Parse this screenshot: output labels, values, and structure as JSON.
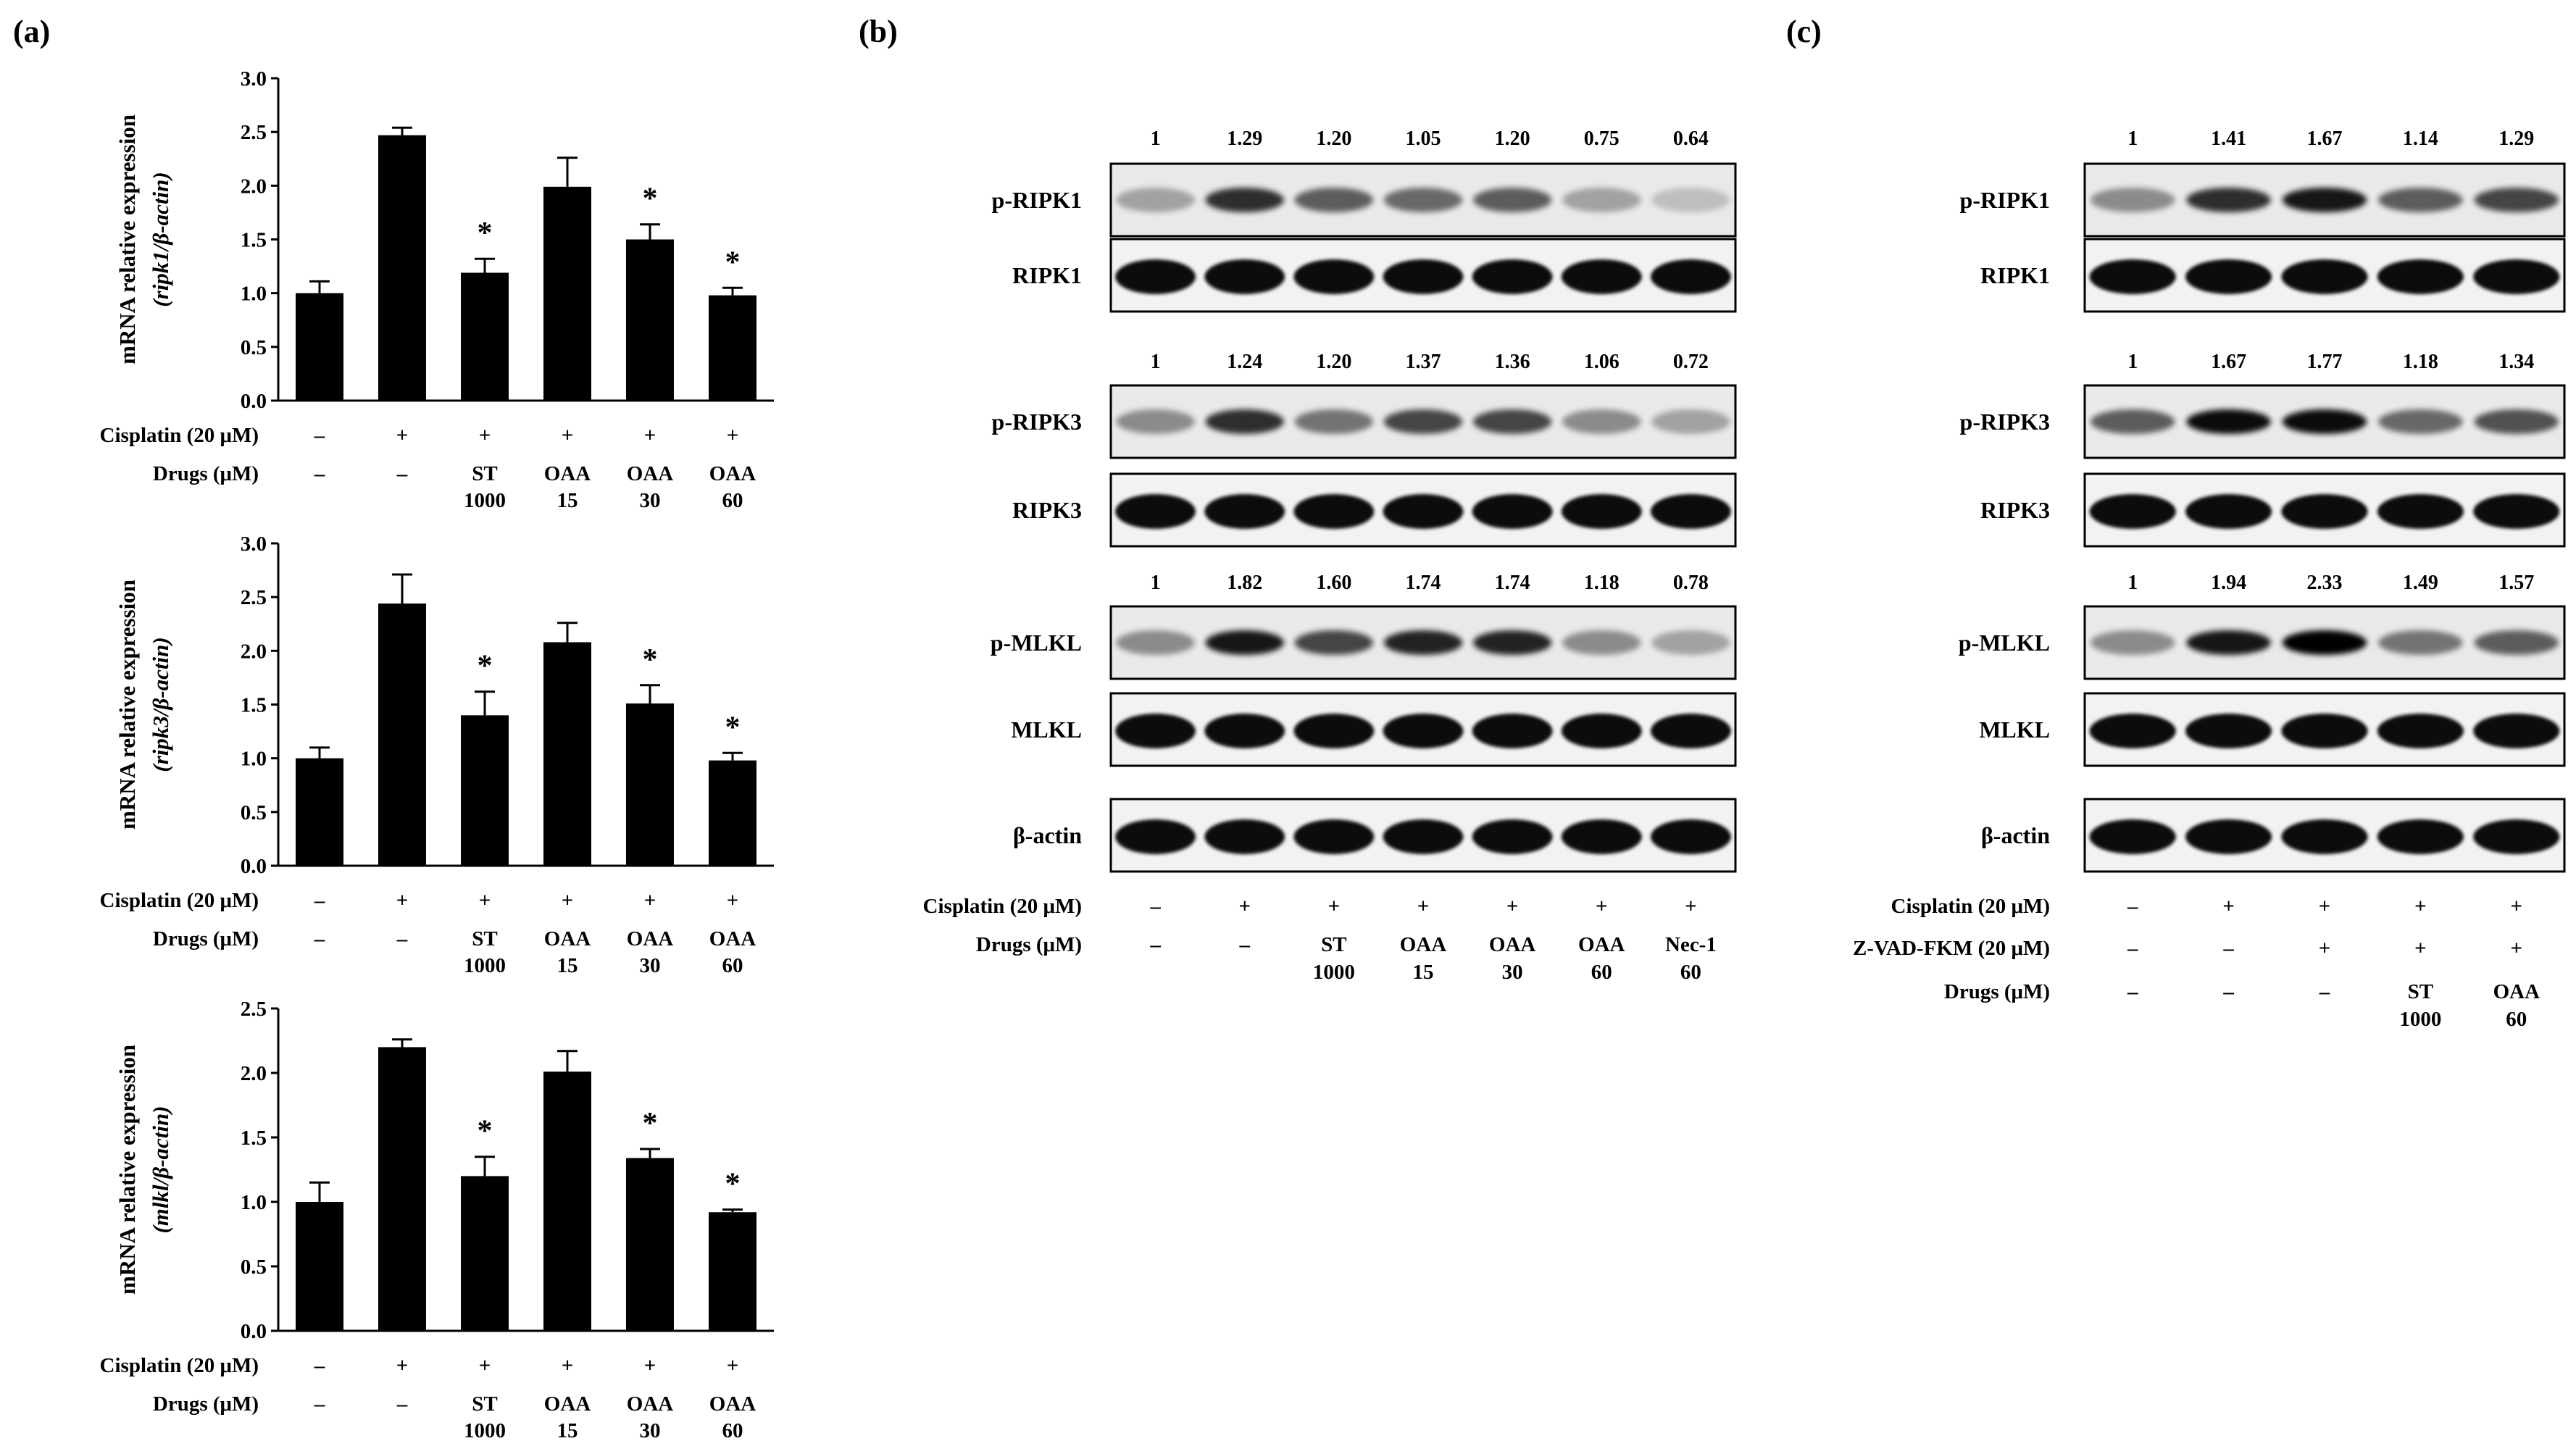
{
  "figure": {
    "panel_a_label": "(a)",
    "panel_b_label": "(b)",
    "panel_c_label": "(c)"
  },
  "chart_data": [
    {
      "type": "bar",
      "ylabel_line1": "mRNA relative expression",
      "ylabel_line2": "(ripk1/β-actin)",
      "ylim": [
        0,
        3.0
      ],
      "yticks": [
        "0.0",
        "0.5",
        "1.0",
        "1.5",
        "2.0",
        "2.5",
        "3.0"
      ],
      "values": [
        1.0,
        2.47,
        1.19,
        1.99,
        1.5,
        0.98
      ],
      "errors": [
        0.11,
        0.07,
        0.13,
        0.27,
        0.14,
        0.07
      ],
      "significant": [
        "",
        "",
        "*",
        "",
        "*",
        "*"
      ],
      "cisplatin_label": "Cisplatin (20 μM)",
      "cisplatin": [
        "–",
        "+",
        "+",
        "+",
        "+",
        "+"
      ],
      "drugs_label": "Drugs (μM)",
      "drugs": [
        [
          "–",
          ""
        ],
        [
          "–",
          ""
        ],
        [
          "ST",
          "1000"
        ],
        [
          "OAA",
          "15"
        ],
        [
          "OAA",
          "30"
        ],
        [
          "OAA",
          "60"
        ]
      ]
    },
    {
      "type": "bar",
      "ylabel_line1": "mRNA relative expression",
      "ylabel_line2": "(ripk3/β-actin)",
      "ylim": [
        0,
        3.0
      ],
      "yticks": [
        "0.0",
        "0.5",
        "1.0",
        "1.5",
        "2.0",
        "2.5",
        "3.0"
      ],
      "values": [
        1.0,
        2.44,
        1.4,
        2.08,
        1.51,
        0.98
      ],
      "errors": [
        0.1,
        0.27,
        0.22,
        0.18,
        0.17,
        0.07
      ],
      "significant": [
        "",
        "",
        "*",
        "",
        "*",
        "*"
      ],
      "cisplatin_label": "Cisplatin (20 μM)",
      "cisplatin": [
        "–",
        "+",
        "+",
        "+",
        "+",
        "+"
      ],
      "drugs_label": "Drugs (μM)",
      "drugs": [
        [
          "–",
          ""
        ],
        [
          "–",
          ""
        ],
        [
          "ST",
          "1000"
        ],
        [
          "OAA",
          "15"
        ],
        [
          "OAA",
          "30"
        ],
        [
          "OAA",
          "60"
        ]
      ]
    },
    {
      "type": "bar",
      "ylabel_line1": "mRNA relative expression",
      "ylabel_line2": "(mlkl/β-actin)",
      "ylim": [
        0,
        2.5
      ],
      "yticks": [
        "0.0",
        "0.5",
        "1.0",
        "1.5",
        "2.0",
        "2.5"
      ],
      "values": [
        1.0,
        2.2,
        1.2,
        2.01,
        1.34,
        0.92
      ],
      "errors": [
        0.15,
        0.06,
        0.15,
        0.16,
        0.07,
        0.02
      ],
      "significant": [
        "",
        "",
        "*",
        "",
        "*",
        "*"
      ],
      "cisplatin_label": "Cisplatin (20 μM)",
      "cisplatin": [
        "–",
        "+",
        "+",
        "+",
        "+",
        "+"
      ],
      "drugs_label": "Drugs (μM)",
      "drugs": [
        [
          "–",
          ""
        ],
        [
          "–",
          ""
        ],
        [
          "ST",
          "1000"
        ],
        [
          "OAA",
          "15"
        ],
        [
          "OAA",
          "30"
        ],
        [
          "OAA",
          "60"
        ]
      ]
    }
  ],
  "blots": [
    {
      "panel": "b",
      "lanes": 7,
      "groups": [
        {
          "quant": [
            "1",
            "1.29",
            "1.20",
            "1.05",
            "1.20",
            "0.75",
            "0.64"
          ],
          "rows": [
            {
              "label": "p-RIPK1",
              "kind": "phospho",
              "intensity": [
                0.3,
                0.8,
                0.6,
                0.55,
                0.6,
                0.3,
                0.18
              ]
            },
            {
              "label": "RIPK1",
              "kind": "total"
            }
          ]
        },
        {
          "quant": [
            "1",
            "1.24",
            "1.20",
            "1.37",
            "1.36",
            "1.06",
            "0.72"
          ],
          "rows": [
            {
              "label": "p-RIPK3",
              "kind": "phospho",
              "intensity": [
                0.4,
                0.8,
                0.5,
                0.7,
                0.7,
                0.4,
                0.3
              ]
            },
            {
              "label": "RIPK3",
              "kind": "total"
            }
          ]
        },
        {
          "quant": [
            "1",
            "1.82",
            "1.60",
            "1.74",
            "1.74",
            "1.18",
            "0.78"
          ],
          "rows": [
            {
              "label": "p-MLKL",
              "kind": "phospho",
              "intensity": [
                0.4,
                0.9,
                0.7,
                0.85,
                0.85,
                0.4,
                0.3
              ]
            },
            {
              "label": "MLKL",
              "kind": "total"
            }
          ]
        },
        {
          "quant": [],
          "rows": [
            {
              "label": "β-actin",
              "kind": "total"
            }
          ]
        }
      ],
      "conditions": [
        {
          "label": "Cisplatin (20 μM)",
          "cells": [
            [
              "–"
            ],
            [
              "+"
            ],
            [
              "+"
            ],
            [
              "+"
            ],
            [
              "+"
            ],
            [
              "+"
            ],
            [
              "+"
            ]
          ]
        },
        {
          "label": "Drugs (μM)",
          "cells": [
            [
              "–"
            ],
            [
              "–"
            ],
            [
              "ST",
              "1000"
            ],
            [
              "OAA",
              "15"
            ],
            [
              "OAA",
              "30"
            ],
            [
              "OAA",
              "60"
            ],
            [
              "Nec-1",
              "60"
            ]
          ]
        }
      ]
    },
    {
      "panel": "c",
      "lanes": 5,
      "groups": [
        {
          "quant": [
            "1",
            "1.41",
            "1.67",
            "1.14",
            "1.29"
          ],
          "rows": [
            {
              "label": "p-RIPK1",
              "kind": "phospho",
              "intensity": [
                0.4,
                0.8,
                0.9,
                0.6,
                0.7
              ]
            },
            {
              "label": "RIPK1",
              "kind": "total"
            }
          ]
        },
        {
          "quant": [
            "1",
            "1.67",
            "1.77",
            "1.18",
            "1.34"
          ],
          "rows": [
            {
              "label": "p-RIPK3",
              "kind": "phospho",
              "intensity": [
                0.6,
                0.95,
                0.95,
                0.55,
                0.65
              ]
            },
            {
              "label": "RIPK3",
              "kind": "total"
            }
          ]
        },
        {
          "quant": [
            "1",
            "1.94",
            "2.33",
            "1.49",
            "1.57"
          ],
          "rows": [
            {
              "label": "p-MLKL",
              "kind": "phospho",
              "intensity": [
                0.4,
                0.9,
                1.0,
                0.5,
                0.6
              ]
            },
            {
              "label": "MLKL",
              "kind": "total"
            }
          ]
        },
        {
          "quant": [],
          "rows": [
            {
              "label": "β-actin",
              "kind": "total"
            }
          ]
        }
      ],
      "conditions": [
        {
          "label": "Cisplatin (20 μM)",
          "cells": [
            [
              "–"
            ],
            [
              "+"
            ],
            [
              "+"
            ],
            [
              "+"
            ],
            [
              "+"
            ]
          ]
        },
        {
          "label": "Z-VAD-FKM (20 μM)",
          "cells": [
            [
              "–"
            ],
            [
              "–"
            ],
            [
              "+"
            ],
            [
              "+"
            ],
            [
              "+"
            ]
          ]
        },
        {
          "label": "Drugs (μM)",
          "cells": [
            [
              "–"
            ],
            [
              "–"
            ],
            [
              "–"
            ],
            [
              "ST",
              "1000"
            ],
            [
              "OAA",
              "60"
            ]
          ]
        }
      ]
    }
  ]
}
